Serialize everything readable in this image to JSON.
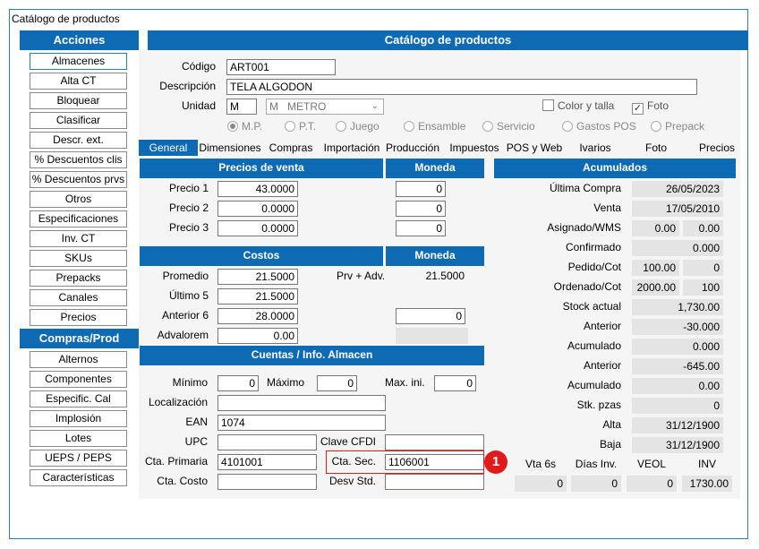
{
  "window": {
    "title": "Catálogo de productos"
  },
  "sidebar": {
    "acciones_header": "Acciones",
    "acciones": [
      "Almacenes",
      "Alta CT",
      "Bloquear",
      "Clasificar",
      "Descr. ext.",
      "% Descuentos clis",
      "% Descuentos prvs",
      "Otros",
      "Especificaciones",
      "Inv. CT",
      "SKUs",
      "Prepacks",
      "Canales",
      "Precios"
    ],
    "compras_header": "Compras/Prod",
    "compras": [
      "Alternos",
      "Componentes",
      "Especific. Cal",
      "Implosión",
      "Lotes",
      "UEPS / PEPS",
      "Características"
    ]
  },
  "main": {
    "header": "Catálogo de productos",
    "codigo": {
      "label": "Código",
      "value": "ART001"
    },
    "descripcion": {
      "label": "Descripción",
      "value": "TELA ALGODON"
    },
    "unidad": {
      "label": "Unidad",
      "value": "M",
      "select": "M   METRO"
    },
    "color_talla": "Color y talla",
    "foto": "Foto",
    "types": [
      "M.P.",
      "P.T.",
      "Juego",
      "Ensamble",
      "Servicio",
      "Gastos POS",
      "Prepack"
    ]
  },
  "tabs": [
    "General",
    "Dimensiones",
    "Compras",
    "Importación",
    "Producción",
    "Impuestos",
    "POS y Web",
    "Ivarios",
    "Foto",
    "Precios"
  ],
  "precios": {
    "header": "Precios de venta",
    "moneda_header": "Moneda",
    "rows": [
      {
        "label": "Precio 1",
        "value": "43.0000",
        "moneda": "0"
      },
      {
        "label": "Precio 2",
        "value": "0.0000",
        "moneda": "0"
      },
      {
        "label": "Precio 3",
        "value": "0.0000",
        "moneda": "0"
      }
    ]
  },
  "costos": {
    "header": "Costos",
    "moneda_header": "Moneda",
    "promedio": {
      "label": "Promedio",
      "value": "21.5000"
    },
    "prv_adv": {
      "label": "Prv + Adv.",
      "value": "21.5000"
    },
    "ultimo": {
      "label": "Último 5",
      "value": "21.5000"
    },
    "anterior": {
      "label": "Anterior 6",
      "value": "28.0000",
      "moneda": "0"
    },
    "advalorem": {
      "label": "Advalorem",
      "value": "0.00"
    }
  },
  "cuentas": {
    "header": "Cuentas / Info. Almacen",
    "minimo": {
      "label": "Mínimo",
      "value": "0"
    },
    "maximo": {
      "label": "Máximo",
      "value": "0"
    },
    "maxini": {
      "label": "Max. ini.",
      "value": "0"
    },
    "localizacion": {
      "label": "Localización",
      "value": ""
    },
    "ean": {
      "label": "EAN",
      "value": "1074"
    },
    "upc": {
      "label": "UPC",
      "value": ""
    },
    "clave_cfdi": {
      "label": "Clave CFDI",
      "value": ""
    },
    "cta_primaria": {
      "label": "Cta. Primaria",
      "value": "4101001"
    },
    "cta_sec": {
      "label": "Cta. Sec.",
      "value": "1106001"
    },
    "cta_costo": {
      "label": "Cta. Costo",
      "value": ""
    },
    "desv_std": {
      "label": "Desv Std.",
      "value": ""
    }
  },
  "acumulados": {
    "header": "Acumulados",
    "rows": [
      {
        "label": "Última  Compra",
        "v1": "",
        "v2": "26/05/2023"
      },
      {
        "label": "Venta",
        "v1": "",
        "v2": "17/05/2010"
      },
      {
        "label": "Asignado/WMS",
        "v1": "0.00",
        "v2": "0.00"
      },
      {
        "label": "Confirmado",
        "v1": "",
        "v2": "0.000"
      },
      {
        "label": "Pedido/Cot",
        "v1": "100.00",
        "v2": "0"
      },
      {
        "label": "Ordenado/Cot",
        "v1": "2000.00",
        "v2": "100"
      },
      {
        "label": "Stock actual",
        "v1": "",
        "v2": "1,730.00"
      },
      {
        "label": "Anterior",
        "v1": "",
        "v2": "-30.000"
      },
      {
        "label": "Acumulado",
        "v1": "",
        "v2": "0.000"
      },
      {
        "label": "Anterior",
        "v1": "",
        "v2": "-645.00"
      },
      {
        "label": "Acumulado",
        "v1": "",
        "v2": "0.00"
      },
      {
        "label": "Stk. pzas",
        "v1": "",
        "v2": "0"
      },
      {
        "label": "Alta",
        "v1": "",
        "v2": "31/12/1900"
      },
      {
        "label": "Baja",
        "v1": "",
        "v2": "31/12/1900"
      }
    ],
    "bottom_labels": [
      "Vta 6s",
      "Días Inv.",
      "VEOL",
      "INV"
    ],
    "bottom_values": [
      "0",
      "0",
      "0",
      "1730.00"
    ]
  },
  "callout": "1"
}
